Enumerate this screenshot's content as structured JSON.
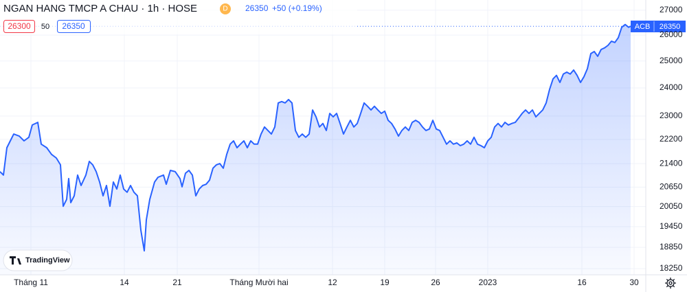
{
  "chart_data": {
    "type": "line",
    "title": "NGAN HANG TMCP A CHAU · 1h · HOSE",
    "badge": "D",
    "last_price": 26350,
    "change": "+50 (+0.19%)",
    "bid": 26300,
    "spread": 50,
    "ask": 26350,
    "symbol": "ACB",
    "watermark": "TradingView",
    "color": "#2962ff",
    "log_scale": true,
    "grid": true,
    "ylim": [
      18080,
      27420
    ],
    "yticks": [
      27000,
      26000,
      25000,
      24000,
      23000,
      22200,
      21400,
      20650,
      20050,
      19450,
      18850,
      18250
    ],
    "xlim": [
      0,
      940
    ],
    "xticks": [
      {
        "value": 45,
        "label": "Tháng 11"
      },
      {
        "value": 181,
        "label": "14"
      },
      {
        "value": 258,
        "label": "21"
      },
      {
        "value": 377,
        "label": "Tháng Mười hai"
      },
      {
        "value": 484,
        "label": "12"
      },
      {
        "value": 560,
        "label": "19"
      },
      {
        "value": 634,
        "label": "26"
      },
      {
        "value": 710,
        "label": "2023"
      },
      {
        "value": 847,
        "label": "16"
      },
      {
        "value": 923,
        "label": "30"
      }
    ],
    "x": [
      0,
      5,
      10,
      15,
      20,
      28,
      35,
      42,
      47,
      55,
      60,
      68,
      75,
      82,
      88,
      92,
      97,
      100,
      103,
      108,
      113,
      118,
      125,
      130,
      135,
      140,
      145,
      150,
      155,
      160,
      165,
      170,
      175,
      180,
      185,
      190,
      195,
      200,
      205,
      210,
      213,
      218,
      225,
      230,
      238,
      242,
      248,
      255,
      262,
      265,
      270,
      275,
      280,
      285,
      290,
      295,
      300,
      305,
      310,
      315,
      320,
      325,
      330,
      335,
      340,
      345,
      350,
      355,
      360,
      365,
      370,
      375,
      380,
      385,
      390,
      395,
      400,
      405,
      410,
      415,
      420,
      425,
      430,
      435,
      440,
      445,
      450,
      455,
      460,
      465,
      470,
      475,
      480,
      485,
      490,
      495,
      500,
      505,
      510,
      515,
      520,
      525,
      530,
      535,
      540,
      545,
      550,
      555,
      560,
      565,
      570,
      575,
      580,
      585,
      590,
      595,
      600,
      605,
      610,
      615,
      620,
      625,
      630,
      635,
      640,
      645,
      650,
      655,
      660,
      665,
      670,
      675,
      680,
      685,
      690,
      695,
      700,
      705,
      710,
      715,
      720,
      725,
      730,
      735,
      740,
      745,
      750,
      755,
      760,
      765,
      770,
      775,
      780,
      785,
      790,
      795,
      800,
      805,
      810,
      815,
      820,
      825,
      830,
      835,
      840,
      845,
      850,
      855,
      860,
      865,
      870,
      875,
      880,
      885,
      890,
      895,
      900,
      905,
      910,
      915,
      918
    ],
    "values": [
      21140,
      21030,
      21920,
      22150,
      22380,
      22310,
      22150,
      22270,
      22690,
      22780,
      22040,
      21920,
      21700,
      21580,
      21360,
      20060,
      20270,
      20920,
      20170,
      20380,
      21030,
      20700,
      21030,
      21470,
      21360,
      21140,
      20810,
      20380,
      20700,
      20060,
      20810,
      20590,
      21030,
      20590,
      20490,
      20700,
      20490,
      20380,
      19350,
      18750,
      19650,
      20270,
      20810,
      20960,
      21030,
      20740,
      21180,
      21140,
      20920,
      20660,
      21090,
      21180,
      21030,
      20380,
      20590,
      20700,
      20740,
      20870,
      21250,
      21360,
      21400,
      21250,
      21700,
      22040,
      22150,
      21920,
      22040,
      22150,
      21920,
      22150,
      22040,
      22040,
      22380,
      22620,
      22500,
      22380,
      22620,
      23460,
      23510,
      23460,
      23580,
      23460,
      22500,
      22270,
      22380,
      22270,
      22380,
      23210,
      22970,
      22620,
      22740,
      22500,
      23090,
      22970,
      23090,
      22740,
      22380,
      22620,
      22850,
      22620,
      22740,
      23090,
      23460,
      23340,
      23210,
      23340,
      23210,
      23090,
      23170,
      22850,
      22740,
      22550,
      22310,
      22500,
      22620,
      22500,
      22780,
      22850,
      22780,
      22620,
      22500,
      22550,
      22850,
      22550,
      22500,
      22270,
      22040,
      22150,
      22040,
      22080,
      21990,
      22040,
      22150,
      22040,
      22270,
      22040,
      21990,
      21920,
      22150,
      22270,
      22620,
      22740,
      22620,
      22780,
      22690,
      22740,
      22780,
      22930,
      23090,
      23210,
      23090,
      23210,
      22970,
      23090,
      23210,
      23460,
      23950,
      24330,
      24460,
      24200,
      24510,
      24580,
      24510,
      24660,
      24460,
      24200,
      24410,
      24710,
      25280,
      25360,
      25180,
      25440,
      25500,
      25600,
      25760,
      25710,
      25900,
      26310,
      26420,
      26310,
      26350
    ]
  }
}
